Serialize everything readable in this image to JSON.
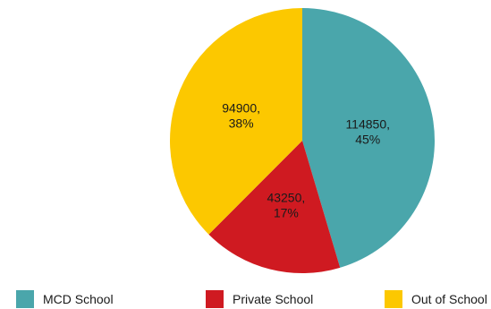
{
  "chart_data": {
    "type": "pie",
    "slices": [
      {
        "name": "MCD School",
        "value": 114850,
        "label_value": "114850,",
        "label_pct": "45%",
        "color": "#4aa6ab"
      },
      {
        "name": "Private School",
        "value": 43250,
        "label_value": "43250,",
        "label_pct": "17%",
        "color": "#cf1a21"
      },
      {
        "name": "Out of School",
        "value": 94900,
        "label_value": "94900,",
        "label_pct": "38%",
        "color": "#fcc800"
      }
    ],
    "start_at": "top",
    "direction": "clockwise",
    "legend": {
      "placement": "bottom",
      "items": [
        "MCD School",
        "Private School",
        "Out of School"
      ]
    }
  }
}
